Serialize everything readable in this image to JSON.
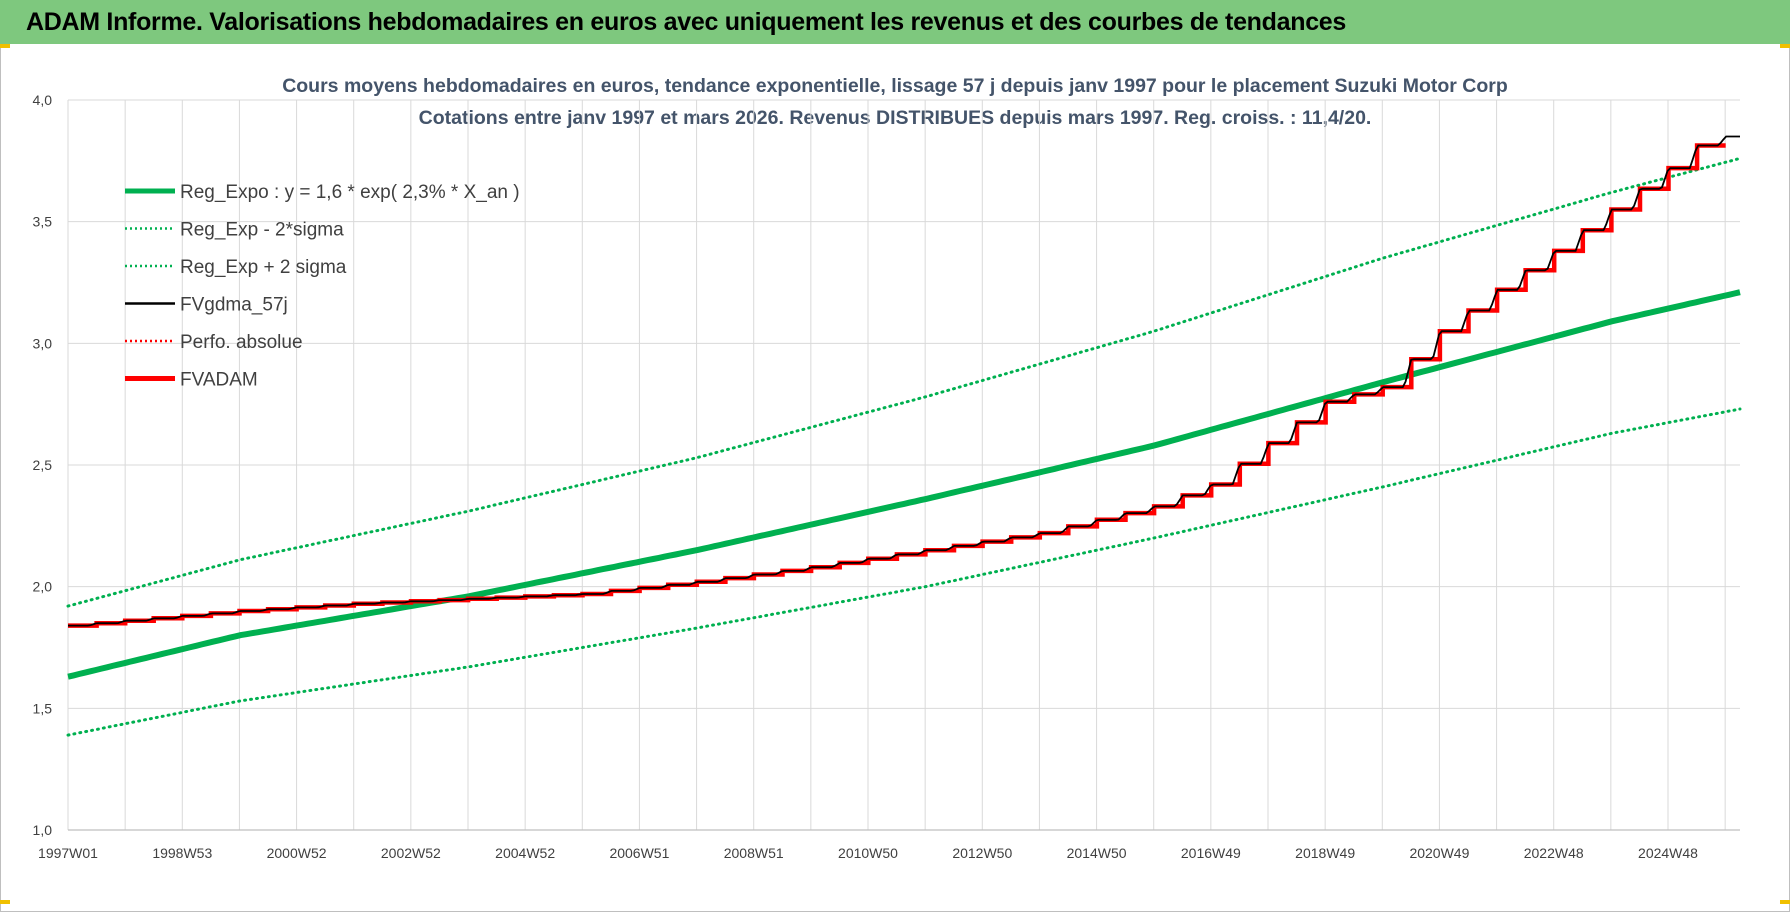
{
  "banner": {
    "title": "ADAM Informe. Valorisations hebdomadaires en euros avec uniquement les revenus et des courbes de tendances"
  },
  "colors": {
    "banner": "#7ec87e",
    "reg_expo": "#00b050",
    "fvgdma": "#000000",
    "fvadam": "#ff0000",
    "grid": "#d9d9d9"
  },
  "chart_data": {
    "type": "line",
    "title_lines": [
      "Cours moyens hebdomadaires en euros, tendance exponentielle, lissage 57 j depuis janv 1997  pour le placement Suzuki Motor Corp",
      "Cotations entre janv 1997 et mars 2026. Revenus DISTRIBUES depuis mars 1997. Reg. croiss. : 11,4/20."
    ],
    "ylim": [
      1.0,
      4.0
    ],
    "y_ticks": [
      "1,0",
      "1,5",
      "2,0",
      "2,5",
      "3,0",
      "3,5",
      "4,0"
    ],
    "x_tick_labels": [
      "1997W01",
      "1998W53",
      "2000W52",
      "2002W52",
      "2004W52",
      "2006W51",
      "2008W51",
      "2010W50",
      "2012W50",
      "2014W50",
      "2016W49",
      "2018W49",
      "2020W49",
      "2022W48",
      "2024W48"
    ],
    "x_range_years": [
      1997.0,
      2026.25
    ],
    "grid": true,
    "legend_position": "top-left",
    "legend": [
      {
        "label": "Reg_Expo : y = 1,6 * exp( 2,3% *  X_an )",
        "color": "#00b050",
        "style": "solid-thick"
      },
      {
        "label": "Reg_Exp - 2*sigma",
        "color": "#00b050",
        "style": "dotted"
      },
      {
        "label": "Reg_Exp + 2 sigma",
        "color": "#00b050",
        "style": "dotted"
      },
      {
        "label": "FVgdma_57j",
        "color": "#000000",
        "style": "solid"
      },
      {
        "label": "Perfo. absolue",
        "color": "#ff0000",
        "style": "dotted"
      },
      {
        "label": "FVADAM",
        "color": "#ff0000",
        "style": "solid-thick"
      }
    ],
    "series": [
      {
        "name": "Reg_Expo : y = 1,6 * exp( 2,3% *  X_an )",
        "x": [
          1997,
          2000,
          2004,
          2008,
          2012,
          2016,
          2020,
          2024,
          2026.25
        ],
        "y": [
          1.63,
          1.8,
          1.96,
          2.15,
          2.36,
          2.58,
          2.84,
          3.09,
          3.21
        ]
      },
      {
        "name": "Reg_Exp - 2*sigma",
        "x": [
          1997,
          2000,
          2004,
          2008,
          2012,
          2016,
          2020,
          2024,
          2026.25
        ],
        "y": [
          1.39,
          1.53,
          1.67,
          1.83,
          2.0,
          2.2,
          2.41,
          2.63,
          2.73
        ]
      },
      {
        "name": "Reg_Exp + 2 sigma",
        "x": [
          1997,
          2000,
          2004,
          2008,
          2012,
          2016,
          2020,
          2024,
          2026.25
        ],
        "y": [
          1.92,
          2.11,
          2.31,
          2.53,
          2.78,
          3.05,
          3.35,
          3.62,
          3.76
        ]
      },
      {
        "name": "FVADAM",
        "x": [
          1997,
          1998,
          2000,
          2002,
          2004,
          2006,
          2008,
          2010,
          2012,
          2014,
          2016,
          2017,
          2018,
          2019,
          2020,
          2021,
          2022,
          2023,
          2024,
          2025,
          2025.7,
          2026.25
        ],
        "y": [
          1.84,
          1.86,
          1.9,
          1.93,
          1.95,
          1.97,
          2.02,
          2.08,
          2.15,
          2.22,
          2.33,
          2.42,
          2.59,
          2.76,
          2.82,
          3.05,
          3.22,
          3.38,
          3.55,
          3.72,
          3.85,
          3.85
        ]
      },
      {
        "name": "FVgdma_57j",
        "x": [
          1997,
          1998,
          2000,
          2002,
          2004,
          2006,
          2008,
          2010,
          2012,
          2014,
          2016,
          2017,
          2018,
          2019,
          2020,
          2021,
          2022,
          2023,
          2024,
          2025,
          2025.7,
          2026.25
        ],
        "y": [
          1.84,
          1.86,
          1.9,
          1.93,
          1.95,
          1.97,
          2.02,
          2.08,
          2.15,
          2.22,
          2.33,
          2.42,
          2.59,
          2.76,
          2.82,
          3.05,
          3.22,
          3.38,
          3.55,
          3.72,
          3.85,
          3.85
        ]
      }
    ]
  }
}
